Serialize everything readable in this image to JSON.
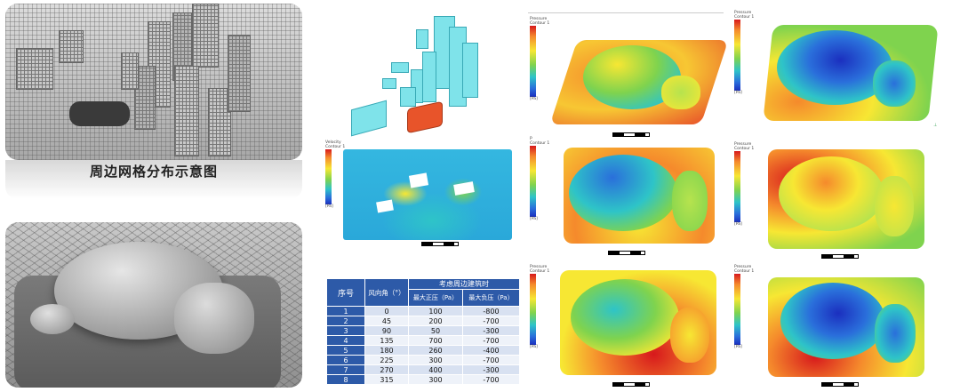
{
  "caption": "周边网格分布示意图",
  "legend_titles": {
    "pressure": "Pressure\nContour 1",
    "velocity": "Velocity\nContour 1",
    "p": "P\nContour 1"
  },
  "legend_unit": "[Pa]",
  "table": {
    "group_header": "考虑周边建筑时",
    "headers": [
      "序号",
      "风向角（°）",
      "最大正压（Pa）",
      "最大负压（Pa）"
    ],
    "rows": [
      [
        "1",
        "0",
        "100",
        "-800"
      ],
      [
        "2",
        "45",
        "200",
        "-700"
      ],
      [
        "3",
        "90",
        "50",
        "-300"
      ],
      [
        "4",
        "135",
        "700",
        "-700"
      ],
      [
        "5",
        "180",
        "260",
        "-400"
      ],
      [
        "6",
        "225",
        "300",
        "-700"
      ],
      [
        "7",
        "270",
        "400",
        "-300"
      ],
      [
        "8",
        "315",
        "300",
        "-700"
      ]
    ]
  },
  "colors": {
    "table_header": "#2d5aa8",
    "building": "#7fe3ea",
    "site": "#e8542a"
  }
}
